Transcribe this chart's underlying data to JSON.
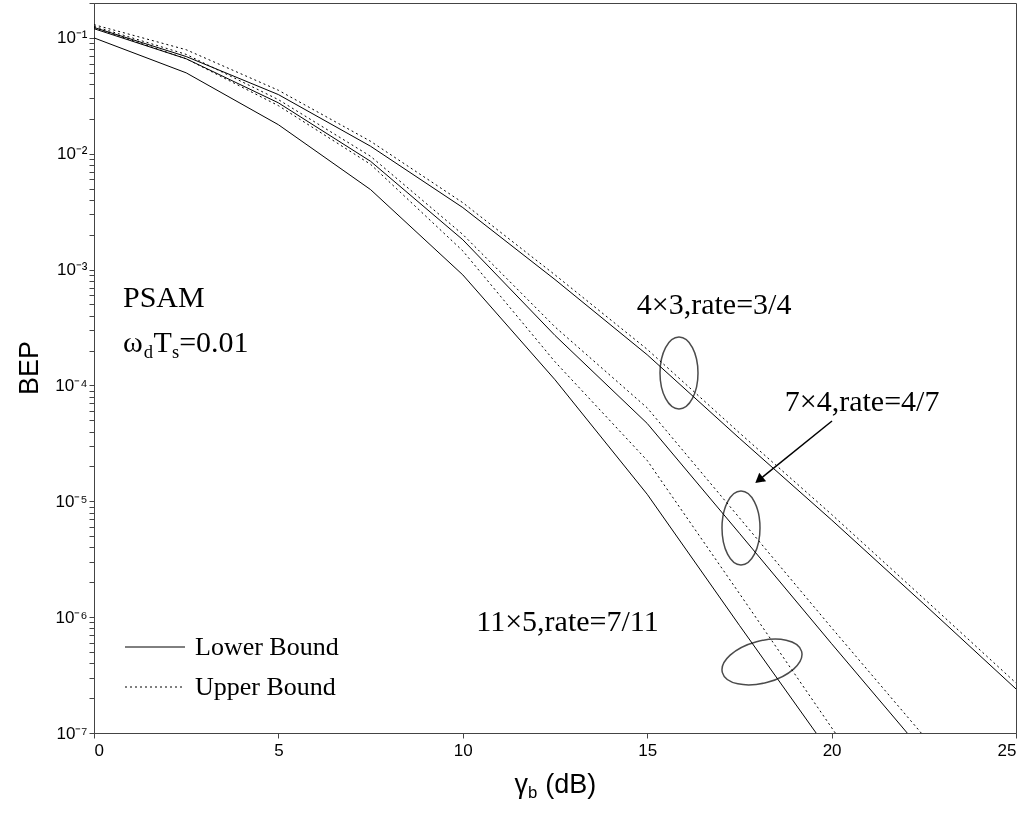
{
  "chart_data": {
    "type": "line",
    "xlabel": "γ$_{b}$ (dB)",
    "ylabel": "BEP",
    "log": "y",
    "xlim": [
      0,
      25
    ],
    "ylim": [
      1e-07,
      0.2
    ],
    "xticks": [
      0,
      5,
      10,
      15,
      20,
      25
    ],
    "yticks": [
      {
        "value": 1e-07,
        "label": "10⁻⁷"
      },
      {
        "value": 2e-07,
        "label": null
      },
      {
        "value": 3e-07,
        "label": null
      },
      {
        "value": 4e-07,
        "label": null
      },
      {
        "value": 5e-07,
        "label": null
      },
      {
        "value": 6e-07,
        "label": null
      },
      {
        "value": 7e-07,
        "label": null
      },
      {
        "value": 8e-07,
        "label": null
      },
      {
        "value": 9e-07,
        "label": null
      },
      {
        "value": 1e-06,
        "label": "10⁻⁶"
      },
      {
        "value": 2e-06,
        "label": null
      },
      {
        "value": 3e-06,
        "label": null
      },
      {
        "value": 4e-06,
        "label": null
      },
      {
        "value": 5e-06,
        "label": null
      },
      {
        "value": 6e-06,
        "label": null
      },
      {
        "value": 7e-06,
        "label": null
      },
      {
        "value": 8e-06,
        "label": null
      },
      {
        "value": 9e-06,
        "label": null
      },
      {
        "value": 1e-05,
        "label": "10⁻⁵"
      },
      {
        "value": 2e-05,
        "label": null
      },
      {
        "value": 3e-05,
        "label": null
      },
      {
        "value": 4e-05,
        "label": null
      },
      {
        "value": 5e-05,
        "label": null
      },
      {
        "value": 6e-05,
        "label": null
      },
      {
        "value": 7e-05,
        "label": null
      },
      {
        "value": 8e-05,
        "label": null
      },
      {
        "value": 9e-05,
        "label": null
      },
      {
        "value": 0.0001,
        "label": "10⁻⁴"
      },
      {
        "value": 0.0002,
        "label": null
      },
      {
        "value": 0.0003,
        "label": null
      },
      {
        "value": 0.0004,
        "label": null
      },
      {
        "value": 0.0005,
        "label": null
      },
      {
        "value": 0.0006,
        "label": null
      },
      {
        "value": 0.0007,
        "label": null
      },
      {
        "value": 0.0008,
        "label": null
      },
      {
        "value": 0.0009,
        "label": null
      },
      {
        "value": 0.001,
        "label": "10⁻³"
      },
      {
        "value": 0.002,
        "label": null
      },
      {
        "value": 0.003,
        "label": null
      },
      {
        "value": 0.004,
        "label": null
      },
      {
        "value": 0.005,
        "label": null
      },
      {
        "value": 0.006,
        "label": null
      },
      {
        "value": 0.007,
        "label": null
      },
      {
        "value": 0.008,
        "label": null
      },
      {
        "value": 0.009,
        "label": null
      },
      {
        "value": 0.01,
        "label": "10⁻²"
      },
      {
        "value": 0.02,
        "label": null
      },
      {
        "value": 0.03,
        "label": null
      },
      {
        "value": 0.04,
        "label": null
      },
      {
        "value": 0.05,
        "label": null
      },
      {
        "value": 0.06,
        "label": null
      },
      {
        "value": 0.07,
        "label": null
      },
      {
        "value": 0.08,
        "label": null
      },
      {
        "value": 0.09,
        "label": null
      },
      {
        "value": 0.1,
        "label": "10⁻¹"
      },
      {
        "value": 0.2,
        "label": null
      }
    ],
    "legend": "bottom left",
    "grid": false,
    "series": [
      {
        "name": "Lower Bound",
        "color": "#000000",
        "line_style": "solid",
        "x": [
          0,
          2.5,
          5,
          7.5,
          10,
          12.5,
          15,
          17.5,
          20,
          22.5,
          25
        ],
        "values": [
          0.123,
          0.069,
          0.0324,
          0.0116,
          0.00343,
          0.00082,
          0.000184,
          3.5e-05,
          6.9e-06,
          1.3e-06,
          2.4e-07
        ]
      },
      {
        "name": "Upper Bound",
        "color": "#000000",
        "line_style": "dotted",
        "x": [
          0,
          2.5,
          5,
          7.5,
          10,
          12.5,
          15,
          17.5,
          20,
          22.5,
          25
        ],
        "values": [
          0.13,
          0.079,
          0.0353,
          0.0128,
          0.00378,
          0.0009,
          0.000205,
          3.9e-05,
          7.7e-06,
          1.45e-06,
          2.7e-07
        ]
      },
      {
        "color": "#000000",
        "line_style": "solid",
        "x": [
          0,
          2.5,
          5,
          7.5,
          10,
          12.5,
          15,
          17.5,
          20,
          22.05
        ],
        "values": [
          0.12,
          0.066,
          0.0275,
          0.0086,
          0.00181,
          0.00027,
          4.7e-05,
          5.3e-06,
          5.9e-07,
          1e-07
        ]
      },
      {
        "color": "#000000",
        "line_style": "dotted",
        "x": [
          0,
          2.5,
          5,
          7.5,
          10,
          12.5,
          15,
          17.5,
          20,
          22.43
        ],
        "values": [
          0.126,
          0.072,
          0.0293,
          0.0095,
          0.00201,
          0.00032,
          6.4e-05,
          7.2e-06,
          8.1e-07,
          1e-07
        ]
      },
      {
        "color": "#000000",
        "line_style": "solid",
        "x": [
          0,
          2.5,
          5,
          7.5,
          10,
          12.5,
          15,
          17.5,
          19.58
        ],
        "values": [
          0.1,
          0.0499,
          0.0178,
          0.0049,
          0.0009,
          0.000112,
          1.15e-05,
          8.5e-07,
          1e-07
        ]
      },
      {
        "color": "#000000",
        "line_style": "dotted",
        "x": [
          0,
          2.5,
          5,
          7.5,
          10,
          12.5,
          15,
          17.5,
          20.1
        ],
        "values": [
          0.123,
          0.066,
          0.026,
          0.0081,
          0.00145,
          0.00016,
          2.25e-05,
          1.6e-06,
          1e-07
        ]
      }
    ],
    "annotations": [
      "4×3,rate=3/4",
      "7×4,rate=4/7",
      "11×5,rate=7/11",
      "PSAM",
      "ω$_{d}$T$_{s}$=0.01"
    ]
  }
}
